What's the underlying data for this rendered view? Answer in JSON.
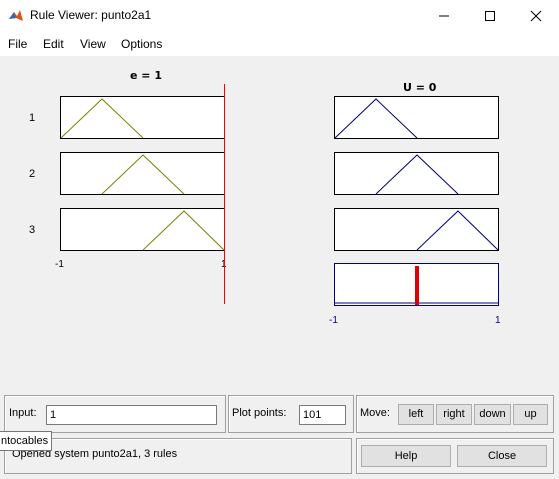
{
  "window": {
    "title": "Rule Viewer: punto2a1"
  },
  "menu": [
    "File",
    "Edit",
    "View",
    "Options"
  ],
  "inputs_plot": {
    "title": "e = 1",
    "xmin_label": "-1",
    "xmax_label": "1"
  },
  "output_plot": {
    "title": "U = 0",
    "xmin_label": "-1",
    "xmax_label": "1"
  },
  "rules": [
    "1",
    "2",
    "3"
  ],
  "colors": {
    "input_mf": "#808000",
    "output_mf": "#000080",
    "input_line": "#ff0000",
    "aggregate_bar": "#e00000"
  },
  "input_panel": {
    "label": "Input:",
    "value": "1"
  },
  "plot_points": {
    "label": "Plot points:",
    "value": "101"
  },
  "move": {
    "label": "Move:",
    "left": "left",
    "right": "right",
    "down": "down",
    "up": "up"
  },
  "status": "Opened system punto2a1, 3 rules",
  "help_label": "Help",
  "close_label": "Close",
  "tooltip": "ntocables"
}
